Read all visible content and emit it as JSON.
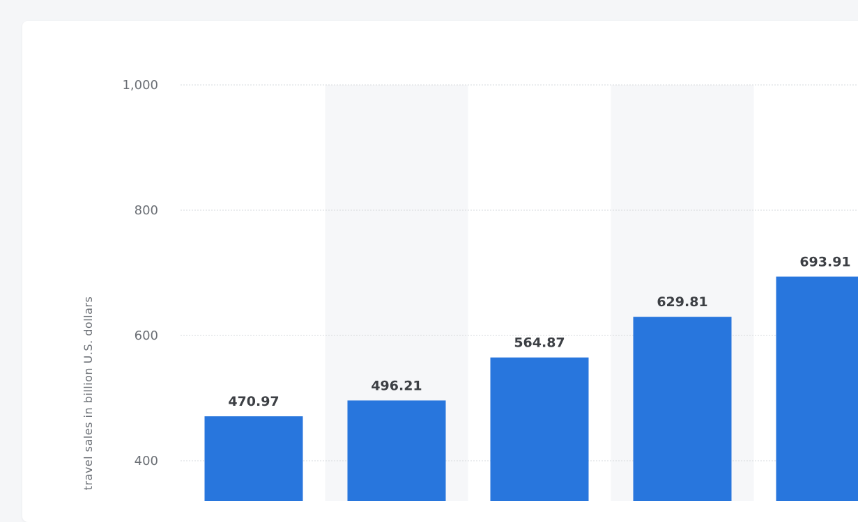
{
  "chart_data": {
    "type": "bar",
    "categories": [
      "",
      "",
      "",
      "",
      ""
    ],
    "values": [
      470.97,
      496.21,
      564.87,
      629.81,
      693.91
    ],
    "value_labels": [
      "470.97",
      "496.21",
      "564.87",
      "629.81",
      "693.91"
    ],
    "title": "",
    "xlabel": "",
    "ylabel": "travel sales in billion U.S. dollars",
    "ylim": [
      0,
      1000
    ],
    "yticks": [
      400,
      600,
      800,
      1000
    ],
    "ytick_labels": [
      "400",
      "600",
      "800",
      "1,000"
    ],
    "grid": true,
    "legend": "none",
    "colors": {
      "bar": "#2876dd",
      "band": "#f6f7f9",
      "grid": "#d5d8dc"
    }
  }
}
